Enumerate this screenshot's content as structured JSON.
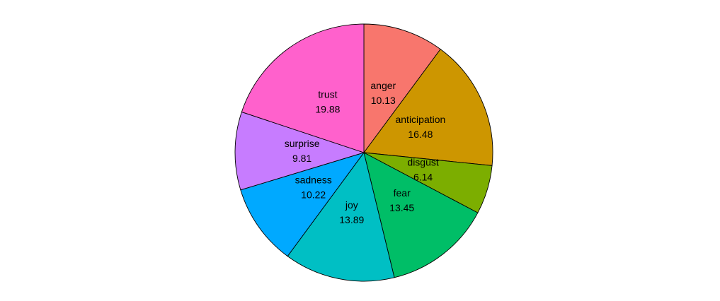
{
  "chart_data": {
    "type": "pie",
    "title": "",
    "start": "top",
    "direction": "clockwise",
    "categories": [
      "anger",
      "anticipation",
      "disgust",
      "fear",
      "joy",
      "sadness",
      "surprise",
      "trust"
    ],
    "values": [
      10.13,
      16.48,
      6.14,
      13.45,
      13.89,
      10.22,
      9.81,
      19.88
    ],
    "value_labels": [
      "10.13",
      "16.48",
      "6.14",
      "13.45",
      "13.89",
      "10.22",
      "9.81",
      "19.88"
    ],
    "colors": [
      "#F8766D",
      "#CD9600",
      "#7CAE00",
      "#00BE67",
      "#00BFC4",
      "#00A9FF",
      "#C77CFF",
      "#FF61CC"
    ],
    "legend": "none",
    "labels_inside": true
  }
}
